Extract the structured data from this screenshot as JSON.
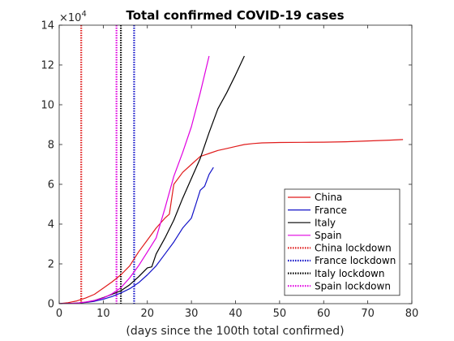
{
  "chart_data": {
    "type": "line",
    "title": "Total confirmed COVID-19 cases",
    "xlabel": "(days since the 100th total confirmed)",
    "ylabel": "",
    "xlim": [
      0,
      80
    ],
    "ylim": [
      0,
      140000
    ],
    "x_ticks": [
      "0",
      "10",
      "20",
      "30",
      "40",
      "50",
      "60",
      "70",
      "80"
    ],
    "y_ticks": [
      "0",
      "2",
      "4",
      "6",
      "8",
      "10",
      "12",
      "14"
    ],
    "y_exponent_label": "×10",
    "y_exponent_power": "4",
    "grid": false,
    "legend_position": "bottom-right",
    "series": [
      {
        "name": "China",
        "color": "#e01b1b",
        "x": [
          0,
          2,
          4,
          6,
          8,
          10,
          12,
          14,
          16,
          18,
          20,
          22,
          24,
          25,
          26,
          28,
          30,
          32,
          34,
          36,
          38,
          40,
          42,
          44,
          46,
          50,
          55,
          60,
          65,
          70,
          75,
          78
        ],
        "y": [
          0,
          500,
          1400,
          2800,
          4700,
          7800,
          11000,
          14500,
          19000,
          26000,
          32000,
          38000,
          43000,
          45000,
          60000,
          66000,
          70000,
          74000,
          75500,
          77000,
          78000,
          79000,
          80000,
          80500,
          80800,
          81000,
          81100,
          81200,
          81400,
          81800,
          82200,
          82500
        ]
      },
      {
        "name": "France",
        "color": "#1212c8",
        "x": [
          0,
          2,
          4,
          6,
          8,
          10,
          12,
          14,
          16,
          18,
          20,
          22,
          24,
          26,
          28,
          30,
          31,
          32,
          33,
          34,
          35
        ],
        "y": [
          0,
          100,
          300,
          600,
          1200,
          2200,
          3600,
          5400,
          7500,
          10500,
          14500,
          19000,
          25000,
          31000,
          38000,
          43000,
          50000,
          57000,
          59000,
          65000,
          68500
        ]
      },
      {
        "name": "Italy",
        "color": "#000000",
        "x": [
          0,
          2,
          4,
          6,
          8,
          10,
          12,
          14,
          16,
          18,
          20,
          21,
          22,
          24,
          26,
          28,
          30,
          32,
          34,
          36,
          38,
          40,
          42
        ],
        "y": [
          0,
          100,
          300,
          700,
          1600,
          3000,
          4700,
          6500,
          9500,
          13500,
          18000,
          18500,
          25000,
          33000,
          42000,
          53000,
          63000,
          73000,
          86000,
          98000,
          106000,
          115000,
          124500
        ]
      },
      {
        "name": "Spain",
        "color": "#e000e0",
        "x": [
          0,
          2,
          4,
          6,
          8,
          10,
          12,
          14,
          16,
          18,
          20,
          22,
          24,
          26,
          28,
          30,
          32,
          34
        ],
        "y": [
          0,
          100,
          300,
          800,
          1600,
          2800,
          5000,
          8000,
          13000,
          19000,
          26000,
          33000,
          48000,
          64000,
          76000,
          89000,
          106000,
          124500
        ]
      }
    ],
    "lockdowns": [
      {
        "name": "China lockdown",
        "color": "#e01b1b",
        "x": 5,
        "pattern": "red"
      },
      {
        "name": "France lockdown",
        "color": "#1212c8",
        "x": 17,
        "pattern": "blue"
      },
      {
        "name": "Italy lockdown",
        "color": "#000000",
        "x": 14,
        "pattern": "black"
      },
      {
        "name": "Spain lockdown",
        "color": "#e000e0",
        "x": 13,
        "pattern": "magenta"
      }
    ]
  }
}
